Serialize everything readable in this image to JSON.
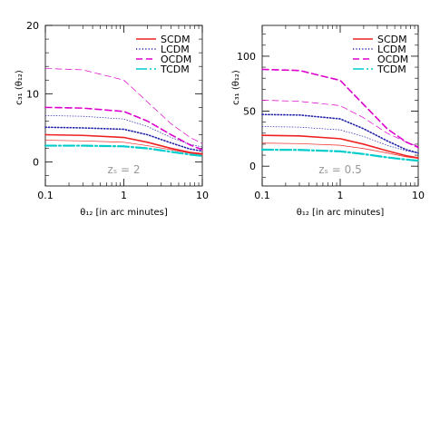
{
  "chart_data": [
    {
      "type": "line",
      "xscale": "log",
      "xlim": [
        0.1,
        10
      ],
      "ylim": [
        -3.5,
        20
      ],
      "xticks": [
        0.1,
        1,
        10
      ],
      "xtick_labels": [
        "0.1",
        "1",
        "10"
      ],
      "yticks": [
        0,
        10,
        20
      ],
      "ytick_labels": [
        "0",
        "10",
        "20"
      ],
      "ylabel": "c₃₁ (θ₁₂)",
      "xlabel": "θ₁₂ [in arc minutes]",
      "annotation": "zₛ = 2",
      "legend_position": "top-right",
      "legend": [
        "SCDM",
        "LCDM",
        "OCDM",
        "TCDM"
      ],
      "series": [
        {
          "name": "SCDM",
          "style": "solid-thick",
          "color": "#ee2222",
          "x": [
            0.1,
            0.3,
            1,
            2,
            4,
            7,
            10
          ],
          "y": [
            4.0,
            3.9,
            3.6,
            2.9,
            2.0,
            1.4,
            1.2
          ]
        },
        {
          "name": "",
          "style": "solid-thin",
          "color": "#ee2222",
          "x": [
            0.1,
            0.3,
            1,
            2,
            4,
            7,
            10
          ],
          "y": [
            3.2,
            3.1,
            2.9,
            2.4,
            1.8,
            1.3,
            1.1
          ]
        },
        {
          "name": "LCDM",
          "style": "dotted-thick",
          "color": "#2222aa",
          "x": [
            0.1,
            0.3,
            1,
            2,
            4,
            7,
            10
          ],
          "y": [
            5.1,
            5.0,
            4.8,
            4.0,
            2.8,
            1.9,
            1.6
          ]
        },
        {
          "name": "",
          "style": "dotted-thin",
          "color": "#2222aa",
          "x": [
            0.1,
            0.3,
            1,
            2,
            4,
            7,
            10
          ],
          "y": [
            6.8,
            6.7,
            6.3,
            5.2,
            3.6,
            2.6,
            2.2
          ]
        },
        {
          "name": "OCDM",
          "style": "dashed-thick",
          "color": "#dd00cc",
          "x": [
            0.1,
            0.3,
            1,
            2,
            4,
            7,
            10
          ],
          "y": [
            8.0,
            7.9,
            7.4,
            6.0,
            4.0,
            2.5,
            1.8
          ]
        },
        {
          "name": "",
          "style": "dashed-thin",
          "color": "#dd00cc",
          "x": [
            0.1,
            0.3,
            1,
            2,
            4,
            7,
            10
          ],
          "y": [
            13.7,
            13.5,
            12.0,
            8.8,
            5.6,
            3.6,
            2.7
          ]
        },
        {
          "name": "TCDM",
          "style": "dashdot-thick",
          "color": "#00cccc",
          "x": [
            0.1,
            0.3,
            1,
            2,
            4,
            7,
            10
          ],
          "y": [
            2.4,
            2.4,
            2.3,
            2.0,
            1.5,
            1.1,
            0.9
          ]
        }
      ]
    },
    {
      "type": "line",
      "xscale": "log",
      "xlim": [
        0.1,
        10
      ],
      "ylim": [
        -18,
        128
      ],
      "xticks": [
        0.1,
        1,
        10
      ],
      "xtick_labels": [
        "0.1",
        "1",
        "10"
      ],
      "yticks": [
        0,
        50,
        100
      ],
      "ytick_labels": [
        "0",
        "50",
        "100"
      ],
      "ylabel": "c₃₁ (θ₁₂)",
      "xlabel": "θ₁₂ [in arc minutes]",
      "annotation": "zₛ = 0.5",
      "legend_position": "top-right",
      "legend": [
        "SCDM",
        "LCDM",
        "OCDM",
        "TCDM"
      ],
      "series": [
        {
          "name": "SCDM",
          "style": "solid-thick",
          "color": "#ee2222",
          "x": [
            0.1,
            0.3,
            1,
            2,
            4,
            7,
            10
          ],
          "y": [
            28,
            27.5,
            25,
            20,
            14,
            9.5,
            7.5
          ]
        },
        {
          "name": "",
          "style": "solid-thin",
          "color": "#ee2222",
          "x": [
            0.1,
            0.3,
            1,
            2,
            4,
            7,
            10
          ],
          "y": [
            21,
            20.5,
            19,
            16,
            12,
            8.5,
            7
          ]
        },
        {
          "name": "LCDM",
          "style": "dotted-thick",
          "color": "#2222aa",
          "x": [
            0.1,
            0.3,
            1,
            2,
            4,
            7,
            10
          ],
          "y": [
            47,
            46.5,
            43,
            34,
            23,
            15,
            12
          ]
        },
        {
          "name": "",
          "style": "dotted-thin",
          "color": "#2222aa",
          "x": [
            0.1,
            0.3,
            1,
            2,
            4,
            7,
            10
          ],
          "y": [
            36,
            35.5,
            33,
            27,
            19,
            14,
            12
          ]
        },
        {
          "name": "OCDM",
          "style": "dashed-thick",
          "color": "#dd00cc",
          "x": [
            0.1,
            0.3,
            1,
            2,
            4,
            7,
            10
          ],
          "y": [
            88,
            87,
            78,
            56,
            34,
            22,
            17
          ]
        },
        {
          "name": "",
          "style": "dashed-thin",
          "color": "#dd00cc",
          "x": [
            0.1,
            0.3,
            1,
            2,
            4,
            7,
            10
          ],
          "y": [
            60,
            59,
            55,
            44,
            30,
            22,
            18
          ]
        },
        {
          "name": "TCDM",
          "style": "dashdot-thick",
          "color": "#00cccc",
          "x": [
            0.1,
            0.3,
            1,
            2,
            4,
            7,
            10
          ],
          "y": [
            15,
            14.8,
            13.5,
            11,
            8,
            6,
            5
          ]
        }
      ]
    }
  ]
}
